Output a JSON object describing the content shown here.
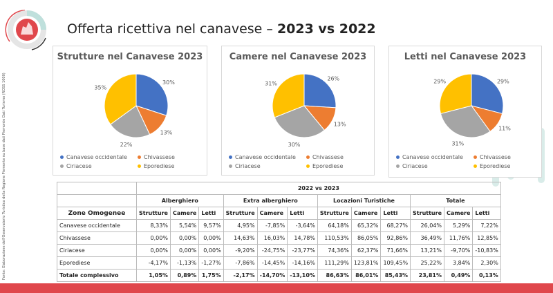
{
  "header": {
    "title_prefix": "Offerta ricettiva nel canavese – ",
    "title_bold": "2023 vs 2022"
  },
  "source": "Fonte: Elaborazione dell'Osservatorio Turistico della Regione Piemonte su base dati Piemonte Dati Turismo (ROSS 1000)",
  "colors": {
    "Canavese occidentale": "#4472c4",
    "Chivassese": "#ed7d31",
    "Ciriacese": "#a5a5a5",
    "Eporediese": "#ffc000",
    "accent": "#e0474c"
  },
  "chart_data": [
    {
      "type": "pie",
      "title": "Strutture nel Canavese 2023",
      "labels": [
        "Canavese occidentale",
        "Chivassese",
        "Ciriacese",
        "Eporediese"
      ],
      "values": [
        30,
        13,
        22,
        35
      ],
      "legend": "bottom"
    },
    {
      "type": "pie",
      "title": "Camere nel Canavese 2023",
      "labels": [
        "Canavese occidentale",
        "Chivassese",
        "Ciriacese",
        "Eporediese"
      ],
      "values": [
        26,
        13,
        30,
        31
      ],
      "legend": "bottom"
    },
    {
      "type": "pie",
      "title": "Letti nel Canavese 2023",
      "labels": [
        "Canavese occidentale",
        "Chivassese",
        "Ciriacese",
        "Eporediese"
      ],
      "values": [
        29,
        11,
        31,
        29
      ],
      "legend": "bottom"
    }
  ],
  "table": {
    "period": "2022 vs 2023",
    "zone_header": "Zone Omogenee",
    "groups": [
      "Alberghiero",
      "Extra alberghiero",
      "Locazioni Turistiche",
      "Totale"
    ],
    "subheaders": [
      "Strutture",
      "Camere",
      "Letti"
    ],
    "rows": [
      {
        "zone": "Canavese occidentale",
        "values": [
          "8,33%",
          "5,54%",
          "9,57%",
          "4,95%",
          "-7,85%",
          "-3,64%",
          "64,18%",
          "65,32%",
          "68,27%",
          "26,04%",
          "5,29%",
          "7,22%"
        ]
      },
      {
        "zone": "Chivassese",
        "values": [
          "0,00%",
          "0,00%",
          "0,00%",
          "14,63%",
          "16,03%",
          "14,78%",
          "110,53%",
          "86,05%",
          "92,86%",
          "36,49%",
          "11,76%",
          "12,85%"
        ]
      },
      {
        "zone": "Ciriacese",
        "values": [
          "0,00%",
          "0,00%",
          "0,00%",
          "-9,20%",
          "-24,75%",
          "-23,77%",
          "74,36%",
          "62,37%",
          "71,66%",
          "13,21%",
          "-9,70%",
          "-10,83%"
        ]
      },
      {
        "zone": "Eporediese",
        "values": [
          "-4,17%",
          "-1,13%",
          "-1,27%",
          "-7,86%",
          "-14,45%",
          "-14,16%",
          "111,29%",
          "123,81%",
          "109,45%",
          "25,22%",
          "3,84%",
          "2,30%"
        ]
      }
    ],
    "total": {
      "zone": "Totale complessivo",
      "values": [
        "1,05%",
        "0,89%",
        "1,75%",
        "-2,17%",
        "-14,70%",
        "-13,10%",
        "86,63%",
        "86,01%",
        "85,43%",
        "23,81%",
        "0,49%",
        "0,13%"
      ]
    }
  }
}
